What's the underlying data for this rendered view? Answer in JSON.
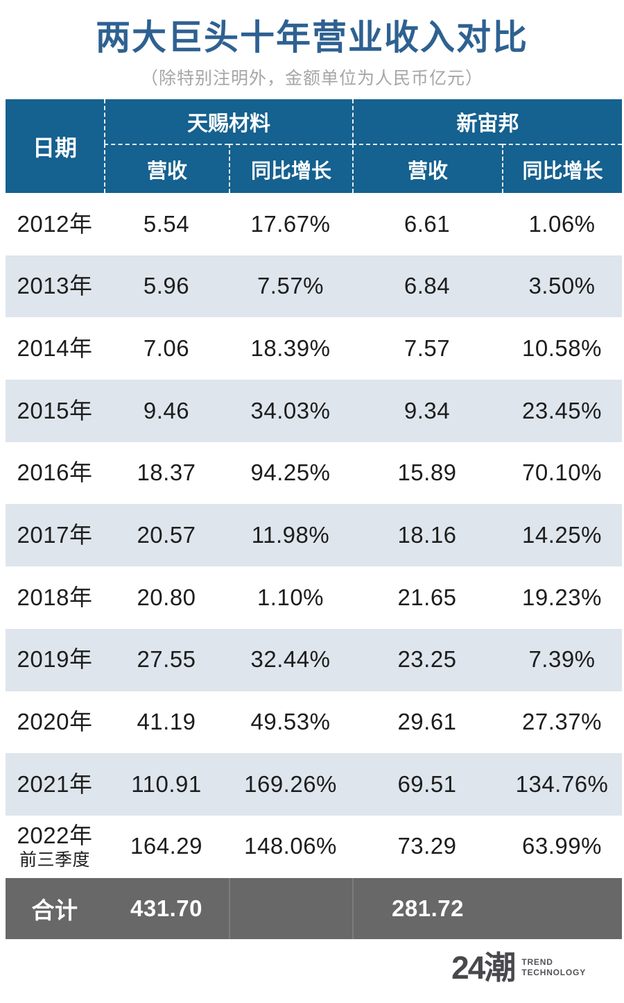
{
  "title": "两大巨头十年营业收入对比",
  "subtitle": "（除特别注明外，金额单位为人民币亿元）",
  "colors": {
    "title_blue": "#2e6191",
    "header_blue": "#15618f",
    "alt_row_blue_gray": "#dee5ec",
    "total_row_gray": "#686868",
    "body_text": "#1d1d1d",
    "subtitle_gray": "#a6a6a6"
  },
  "table": {
    "date_header": "日期",
    "company_groups": [
      {
        "name": "天赐材料",
        "subcolumns": [
          "营收",
          "同比增长"
        ]
      },
      {
        "name": "新宙邦",
        "subcolumns": [
          "营收",
          "同比增长"
        ]
      }
    ],
    "rows": [
      {
        "date": "2012年",
        "date_note": "",
        "cells": [
          "5.54",
          "17.67%",
          "6.61",
          "1.06%"
        ]
      },
      {
        "date": "2013年",
        "date_note": "",
        "cells": [
          "5.96",
          "7.57%",
          "6.84",
          "3.50%"
        ]
      },
      {
        "date": "2014年",
        "date_note": "",
        "cells": [
          "7.06",
          "18.39%",
          "7.57",
          "10.58%"
        ]
      },
      {
        "date": "2015年",
        "date_note": "",
        "cells": [
          "9.46",
          "34.03%",
          "9.34",
          "23.45%"
        ]
      },
      {
        "date": "2016年",
        "date_note": "",
        "cells": [
          "18.37",
          "94.25%",
          "15.89",
          "70.10%"
        ]
      },
      {
        "date": "2017年",
        "date_note": "",
        "cells": [
          "20.57",
          "11.98%",
          "18.16",
          "14.25%"
        ]
      },
      {
        "date": "2018年",
        "date_note": "",
        "cells": [
          "20.80",
          "1.10%",
          "21.65",
          "19.23%"
        ]
      },
      {
        "date": "2019年",
        "date_note": "",
        "cells": [
          "27.55",
          "32.44%",
          "23.25",
          "7.39%"
        ]
      },
      {
        "date": "2020年",
        "date_note": "",
        "cells": [
          "41.19",
          "49.53%",
          "29.61",
          "27.37%"
        ]
      },
      {
        "date": "2021年",
        "date_note": "",
        "cells": [
          "110.91",
          "169.26%",
          "69.51",
          "134.76%"
        ]
      },
      {
        "date": "2022年",
        "date_note": "前三季度",
        "cells": [
          "164.29",
          "148.06%",
          "73.29",
          "63.99%"
        ]
      }
    ],
    "total": {
      "label": "合计",
      "cells": [
        "431.70",
        "",
        "281.72",
        ""
      ]
    }
  },
  "footer": {
    "logo": "24潮",
    "logo_caption_line1": "TREND",
    "logo_caption_line2": "TECHNOLOGY"
  },
  "chart_data": {
    "type": "table",
    "title": "两大巨头十年营业收入对比",
    "subtitle": "（除特别注明外，金额单位为人民币亿元）",
    "unit": "人民币亿元",
    "categories": [
      "2012年",
      "2013年",
      "2014年",
      "2015年",
      "2016年",
      "2017年",
      "2018年",
      "2019年",
      "2020年",
      "2021年",
      "2022年前三季度"
    ],
    "series": [
      {
        "name": "天赐材料-营收",
        "values": [
          5.54,
          5.96,
          7.06,
          9.46,
          18.37,
          20.57,
          20.8,
          27.55,
          41.19,
          110.91,
          164.29
        ]
      },
      {
        "name": "天赐材料-同比增长(%)",
        "values": [
          17.67,
          7.57,
          18.39,
          34.03,
          94.25,
          11.98,
          1.1,
          32.44,
          49.53,
          169.26,
          148.06
        ]
      },
      {
        "name": "新宙邦-营收",
        "values": [
          6.61,
          6.84,
          7.57,
          9.34,
          15.89,
          18.16,
          21.65,
          23.25,
          29.61,
          69.51,
          73.29
        ]
      },
      {
        "name": "新宙邦-同比增长(%)",
        "values": [
          1.06,
          3.5,
          10.58,
          23.45,
          70.1,
          14.25,
          19.23,
          7.39,
          27.37,
          134.76,
          63.99
        ]
      }
    ],
    "totals": {
      "天赐材料-营收": 431.7,
      "新宙邦-营收": 281.72
    }
  }
}
